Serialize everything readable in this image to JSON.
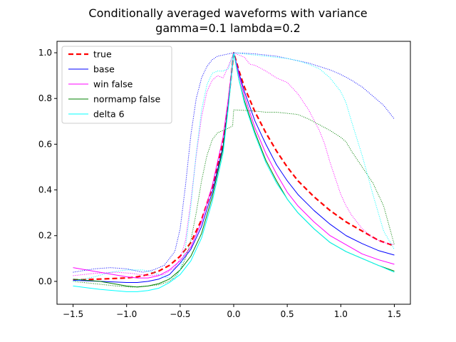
{
  "chart_data": {
    "type": "line",
    "title_line1": "Conditionally averaged waveforms with variance",
    "title_line2": "gamma=0.1 lambda=0.2",
    "xlabel": "",
    "ylabel": "",
    "xlim": [
      -1.65,
      1.65
    ],
    "ylim": [
      -0.1,
      1.05
    ],
    "xticks": [
      -1.5,
      -1.0,
      -0.5,
      0.0,
      0.5,
      1.0,
      1.5
    ],
    "xtick_labels": [
      "−1.5",
      "−1.0",
      "−0.5",
      "0.0",
      "0.5",
      "1.0",
      "1.5"
    ],
    "yticks": [
      0.0,
      0.2,
      0.4,
      0.6,
      0.8,
      1.0
    ],
    "ytick_labels": [
      "0.0",
      "0.2",
      "0.4",
      "0.6",
      "0.8",
      "1.0"
    ],
    "grid": false,
    "legend_position": "top-left",
    "series": [
      {
        "name": "true",
        "color": "#ff0000",
        "style": "dashed",
        "width": 2.2,
        "x": [
          -1.5,
          -1.25,
          -1.0,
          -0.9,
          -0.8,
          -0.7,
          -0.6,
          -0.5,
          -0.4,
          -0.3,
          -0.2,
          -0.1,
          -0.05,
          0.0,
          0.05,
          0.1,
          0.2,
          0.3,
          0.4,
          0.5,
          0.6,
          0.75,
          0.9,
          1.05,
          1.2,
          1.35,
          1.5
        ],
        "y": [
          0.006,
          0.01,
          0.015,
          0.02,
          0.03,
          0.045,
          0.07,
          0.11,
          0.17,
          0.27,
          0.41,
          0.61,
          0.78,
          1.0,
          0.92,
          0.85,
          0.74,
          0.65,
          0.57,
          0.5,
          0.44,
          0.37,
          0.31,
          0.26,
          0.22,
          0.18,
          0.155
        ]
      },
      {
        "name": "base",
        "color": "#0000ff",
        "style": "solid",
        "width": 1,
        "x": [
          -1.5,
          -1.25,
          -1.0,
          -0.9,
          -0.8,
          -0.7,
          -0.6,
          -0.5,
          -0.4,
          -0.3,
          -0.2,
          -0.1,
          -0.05,
          0.0,
          0.05,
          0.1,
          0.2,
          0.3,
          0.4,
          0.5,
          0.6,
          0.75,
          0.9,
          1.05,
          1.2,
          1.35,
          1.5
        ],
        "y": [
          0.005,
          0.0,
          -0.005,
          -0.005,
          0.0,
          0.01,
          0.03,
          0.08,
          0.14,
          0.24,
          0.39,
          0.59,
          0.77,
          1.0,
          0.91,
          0.83,
          0.7,
          0.6,
          0.51,
          0.44,
          0.38,
          0.31,
          0.25,
          0.2,
          0.165,
          0.135,
          0.115
        ]
      },
      {
        "name": "win false",
        "color": "#ff00ff",
        "style": "solid",
        "width": 1,
        "x": [
          -1.5,
          -1.25,
          -1.0,
          -0.9,
          -0.8,
          -0.7,
          -0.6,
          -0.5,
          -0.4,
          -0.3,
          -0.2,
          -0.1,
          -0.05,
          0.0,
          0.05,
          0.1,
          0.2,
          0.3,
          0.4,
          0.5,
          0.6,
          0.75,
          0.9,
          1.05,
          1.2,
          1.35,
          1.5
        ],
        "y": [
          0.06,
          0.04,
          0.02,
          0.015,
          0.015,
          0.025,
          0.05,
          0.09,
          0.15,
          0.26,
          0.42,
          0.63,
          0.8,
          1.0,
          0.9,
          0.81,
          0.67,
          0.56,
          0.47,
          0.39,
          0.33,
          0.26,
          0.2,
          0.16,
          0.12,
          0.095,
          0.075
        ]
      },
      {
        "name": "normamp false",
        "color": "#008000",
        "style": "solid",
        "width": 1,
        "x": [
          -1.5,
          -1.25,
          -1.0,
          -0.9,
          -0.8,
          -0.7,
          -0.6,
          -0.5,
          -0.4,
          -0.3,
          -0.2,
          -0.1,
          -0.05,
          0.0,
          0.05,
          0.1,
          0.2,
          0.3,
          0.4,
          0.5,
          0.6,
          0.75,
          0.9,
          1.05,
          1.2,
          1.35,
          1.5
        ],
        "y": [
          0.01,
          0.0,
          -0.02,
          -0.025,
          -0.02,
          -0.01,
          0.01,
          0.05,
          0.11,
          0.21,
          0.37,
          0.58,
          0.77,
          1.0,
          0.88,
          0.79,
          0.65,
          0.53,
          0.44,
          0.36,
          0.3,
          0.23,
          0.17,
          0.13,
          0.1,
          0.07,
          0.045
        ]
      },
      {
        "name": "delta 6",
        "color": "#00ffff",
        "style": "solid",
        "width": 1,
        "x": [
          -1.5,
          -1.25,
          -1.0,
          -0.9,
          -0.8,
          -0.7,
          -0.6,
          -0.5,
          -0.4,
          -0.3,
          -0.2,
          -0.1,
          -0.05,
          0.0,
          0.05,
          0.1,
          0.2,
          0.3,
          0.4,
          0.5,
          0.6,
          0.75,
          0.9,
          1.05,
          1.2,
          1.35,
          1.5
        ],
        "y": [
          -0.02,
          -0.035,
          -0.045,
          -0.045,
          -0.04,
          -0.03,
          -0.005,
          0.03,
          0.09,
          0.19,
          0.35,
          0.56,
          0.76,
          1.0,
          0.88,
          0.78,
          0.64,
          0.52,
          0.43,
          0.36,
          0.3,
          0.23,
          0.17,
          0.13,
          0.1,
          0.07,
          0.04
        ]
      },
      {
        "name": "",
        "color": "#0000ff",
        "style": "dotted",
        "width": 1,
        "x": [
          -1.5,
          -1.3,
          -1.15,
          -1.0,
          -0.85,
          -0.75,
          -0.65,
          -0.55,
          -0.5,
          -0.45,
          -0.4,
          -0.35,
          -0.3,
          -0.25,
          -0.2,
          -0.15,
          -0.1,
          -0.05,
          0.0,
          0.1,
          0.2,
          0.3,
          0.4,
          0.5,
          0.6,
          0.7,
          0.8,
          0.9,
          1.0,
          1.1,
          1.2,
          1.3,
          1.4,
          1.5
        ],
        "y": [
          0.04,
          0.055,
          0.06,
          0.055,
          0.04,
          0.05,
          0.07,
          0.13,
          0.23,
          0.42,
          0.64,
          0.8,
          0.89,
          0.94,
          0.97,
          0.985,
          0.99,
          0.995,
          1.0,
          0.998,
          0.995,
          0.99,
          0.985,
          0.975,
          0.965,
          0.955,
          0.94,
          0.925,
          0.905,
          0.88,
          0.85,
          0.81,
          0.77,
          0.71
        ]
      },
      {
        "name": "",
        "color": "#ff00ff",
        "style": "dotted",
        "width": 1,
        "x": [
          -1.5,
          -1.3,
          -1.1,
          -0.95,
          -0.8,
          -0.65,
          -0.55,
          -0.5,
          -0.45,
          -0.4,
          -0.35,
          -0.3,
          -0.25,
          -0.2,
          -0.15,
          -0.1,
          -0.05,
          0.0,
          0.1,
          0.15,
          0.2,
          0.3,
          0.4,
          0.5,
          0.6,
          0.7,
          0.8,
          0.85,
          0.9,
          0.95,
          1.0,
          1.05,
          1.1,
          1.2,
          1.3,
          1.4,
          1.5
        ],
        "y": [
          0.025,
          0.035,
          0.04,
          0.035,
          0.025,
          0.03,
          0.06,
          0.1,
          0.18,
          0.35,
          0.55,
          0.72,
          0.83,
          0.88,
          0.9,
          0.89,
          0.94,
          1.0,
          0.98,
          0.95,
          0.945,
          0.92,
          0.89,
          0.87,
          0.82,
          0.75,
          0.66,
          0.6,
          0.52,
          0.45,
          0.38,
          0.33,
          0.29,
          0.23,
          0.19,
          0.17,
          0.16
        ]
      },
      {
        "name": "",
        "color": "#008000",
        "style": "dotted",
        "width": 1,
        "x": [
          -1.5,
          -1.3,
          -1.1,
          -0.95,
          -0.8,
          -0.7,
          -0.6,
          -0.55,
          -0.5,
          -0.45,
          -0.4,
          -0.35,
          -0.3,
          -0.25,
          -0.2,
          -0.15,
          -0.1,
          -0.05,
          -0.01,
          0.0,
          0.1,
          0.2,
          0.3,
          0.4,
          0.5,
          0.6,
          0.7,
          0.8,
          0.9,
          1.0,
          1.05,
          1.1,
          1.2,
          1.3,
          1.4,
          1.5
        ],
        "y": [
          0.0,
          -0.01,
          -0.02,
          -0.025,
          -0.02,
          -0.015,
          0.0,
          0.02,
          0.05,
          0.1,
          0.18,
          0.3,
          0.44,
          0.55,
          0.62,
          0.65,
          0.66,
          0.67,
          0.68,
          0.75,
          0.748,
          0.745,
          0.74,
          0.74,
          0.735,
          0.73,
          0.71,
          0.685,
          0.66,
          0.63,
          0.61,
          0.57,
          0.5,
          0.43,
          0.33,
          0.16
        ]
      },
      {
        "name": "",
        "color": "#00ffff",
        "style": "dotted",
        "width": 1,
        "x": [
          -1.5,
          -1.3,
          -1.15,
          -1.0,
          -0.85,
          -0.75,
          -0.65,
          -0.55,
          -0.5,
          -0.45,
          -0.4,
          -0.35,
          -0.3,
          -0.25,
          -0.2,
          -0.15,
          -0.1,
          -0.05,
          0.0,
          0.1,
          0.2,
          0.3,
          0.4,
          0.5,
          0.6,
          0.7,
          0.8,
          0.9,
          1.0,
          1.05,
          1.1,
          1.2,
          1.3,
          1.4,
          1.5
        ],
        "y": [
          0.0,
          0.02,
          0.04,
          0.05,
          0.05,
          0.04,
          0.02,
          0.01,
          0.05,
          0.15,
          0.33,
          0.56,
          0.75,
          0.86,
          0.91,
          0.92,
          0.92,
          0.93,
          1.0,
          0.995,
          0.99,
          0.985,
          0.98,
          0.975,
          0.965,
          0.95,
          0.93,
          0.89,
          0.83,
          0.78,
          0.7,
          0.55,
          0.38,
          0.22,
          0.14
        ]
      }
    ]
  }
}
